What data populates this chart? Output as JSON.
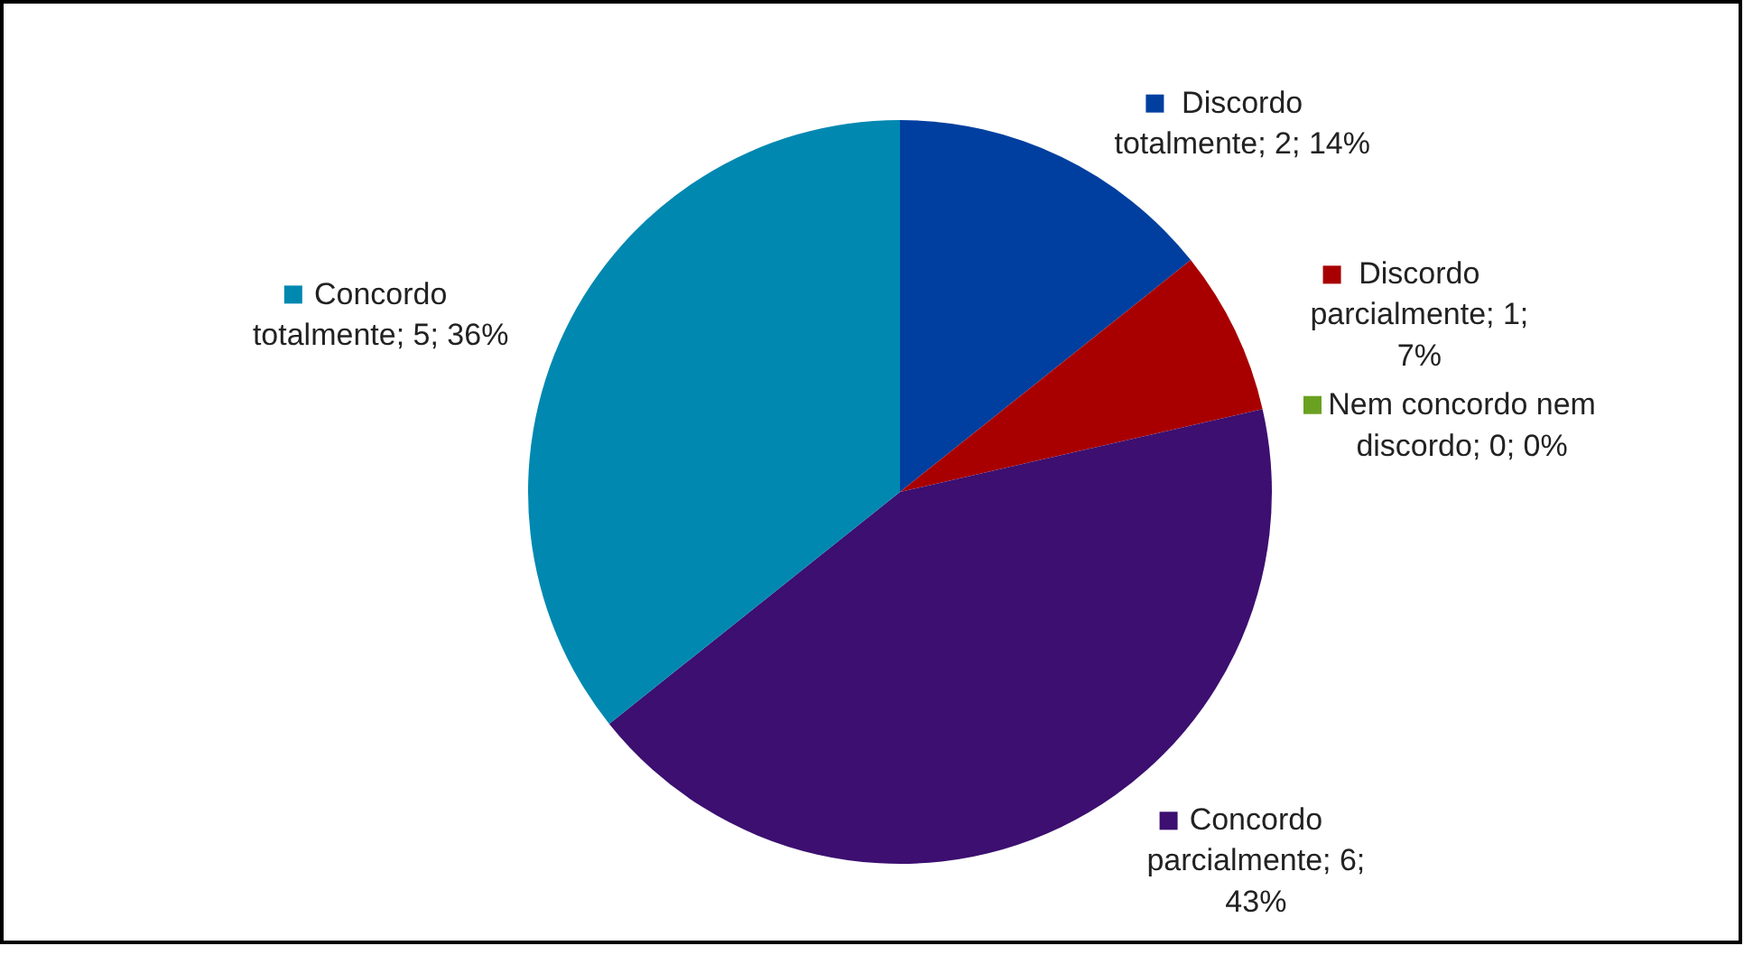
{
  "chart_data": {
    "type": "pie",
    "categories": [
      "Discordo totalmente",
      "Discordo parcialmente",
      "Nem concordo nem discordo",
      "Concordo parcialmente",
      "Concordo totalmente"
    ],
    "values": [
      2,
      1,
      0,
      6,
      5
    ],
    "colors": [
      "#003f9f",
      "#a80000",
      "#6aa121",
      "#3c0f70",
      "#0088b0"
    ],
    "legend": "right",
    "value_labels": [
      "; 2; 14%",
      "; 1; 7%",
      "; 0; 0%",
      "; 6; 43%",
      "; 5; 36%"
    ]
  }
}
